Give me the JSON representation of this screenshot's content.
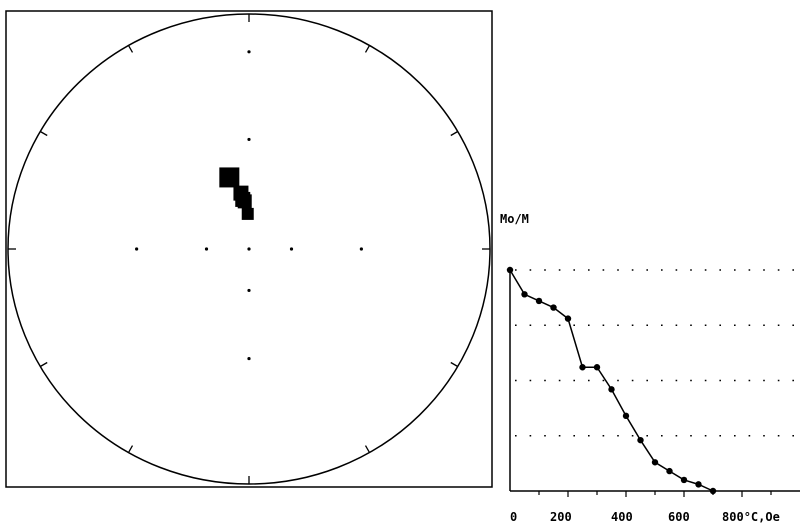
{
  "chart_data": [
    {
      "type": "scatter",
      "subtype": "stereographic-projection",
      "grid": false,
      "points": [
        {
          "declination": 345,
          "inclination": 55
        },
        {
          "declination": 352,
          "inclination": 63
        },
        {
          "declination": 353,
          "inclination": 66
        },
        {
          "declination": 355,
          "inclination": 67
        },
        {
          "declination": 358,
          "inclination": 73
        }
      ]
    },
    {
      "type": "line",
      "ylabel": "Mo/M",
      "xlabel": "°C,Oe",
      "x_tick_labels": [
        "0",
        "200",
        "400",
        "600",
        "800"
      ],
      "xlim": [
        0,
        1000
      ],
      "ylim": [
        0,
        1
      ],
      "grid": "dotted horizontal",
      "series": [
        {
          "x": [
            0,
            50,
            100,
            150,
            200,
            250,
            300,
            350,
            400,
            450,
            500,
            550,
            600,
            650,
            700
          ],
          "y": [
            1.0,
            0.89,
            0.86,
            0.83,
            0.78,
            0.56,
            0.56,
            0.46,
            0.34,
            0.23,
            0.13,
            0.09,
            0.05,
            0.03,
            0.0
          ]
        }
      ]
    }
  ]
}
